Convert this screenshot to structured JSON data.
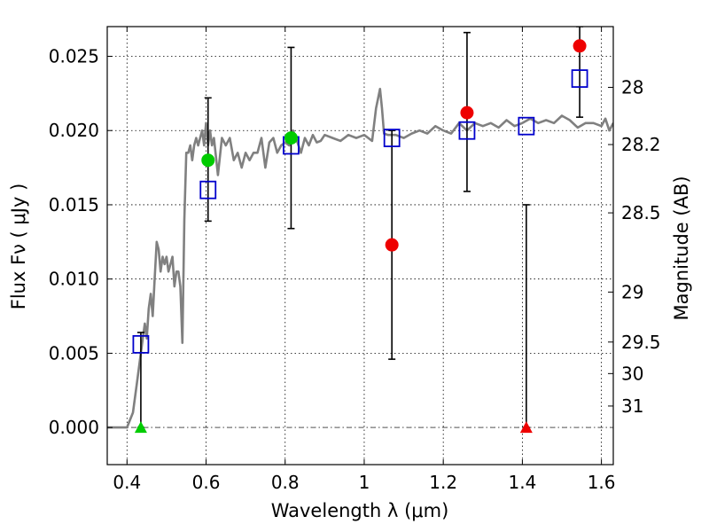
{
  "chart_data": {
    "type": "scatter",
    "xlabel": "Wavelength  λ (μm)",
    "ylabel": "Flux  Fν  ( μJy )",
    "y2label": "Magnitude (AB)",
    "xlim": [
      0.35,
      1.63
    ],
    "ylim": [
      -0.0025,
      0.027
    ],
    "grid": true,
    "x_ticks": [
      {
        "value": 0.4,
        "label": "0.4"
      },
      {
        "value": 0.6,
        "label": "0.6"
      },
      {
        "value": 0.8,
        "label": "0.8"
      },
      {
        "value": 1.0,
        "label": "1"
      },
      {
        "value": 1.2,
        "label": "1.2"
      },
      {
        "value": 1.4,
        "label": "1.4"
      },
      {
        "value": 1.6,
        "label": "1.6"
      }
    ],
    "y_ticks": [
      {
        "value": 0.0,
        "label": "0.000"
      },
      {
        "value": 0.005,
        "label": "0.005"
      },
      {
        "value": 0.01,
        "label": "0.010"
      },
      {
        "value": 0.015,
        "label": "0.015"
      },
      {
        "value": 0.02,
        "label": "0.020"
      },
      {
        "value": 0.025,
        "label": "0.025"
      }
    ],
    "y2_ticks": [
      {
        "value": 28,
        "label": "28"
      },
      {
        "value": 28.2,
        "label": "28.2"
      },
      {
        "value": 28.5,
        "label": "28.5"
      },
      {
        "value": 29,
        "label": "29"
      },
      {
        "value": 29.5,
        "label": "29.5"
      },
      {
        "value": 30,
        "label": "30"
      },
      {
        "value": 31,
        "label": "31"
      }
    ],
    "template_spectrum": {
      "color": "#808080",
      "x": [
        0.35,
        0.4,
        0.415,
        0.425,
        0.435,
        0.44,
        0.445,
        0.45,
        0.455,
        0.46,
        0.465,
        0.47,
        0.475,
        0.48,
        0.485,
        0.49,
        0.495,
        0.5,
        0.505,
        0.51,
        0.515,
        0.52,
        0.525,
        0.53,
        0.535,
        0.54,
        0.545,
        0.55,
        0.555,
        0.56,
        0.565,
        0.57,
        0.575,
        0.58,
        0.585,
        0.59,
        0.595,
        0.6,
        0.605,
        0.61,
        0.615,
        0.62,
        0.63,
        0.64,
        0.65,
        0.66,
        0.67,
        0.68,
        0.69,
        0.7,
        0.71,
        0.72,
        0.73,
        0.74,
        0.75,
        0.76,
        0.77,
        0.78,
        0.79,
        0.8,
        0.81,
        0.82,
        0.83,
        0.84,
        0.85,
        0.86,
        0.87,
        0.88,
        0.89,
        0.9,
        0.92,
        0.94,
        0.96,
        0.98,
        1.0,
        1.02,
        1.03,
        1.04,
        1.045,
        1.05,
        1.06,
        1.08,
        1.1,
        1.12,
        1.14,
        1.16,
        1.18,
        1.2,
        1.22,
        1.24,
        1.26,
        1.28,
        1.3,
        1.32,
        1.34,
        1.36,
        1.38,
        1.4,
        1.42,
        1.44,
        1.46,
        1.48,
        1.5,
        1.52,
        1.54,
        1.56,
        1.58,
        1.6,
        1.61,
        1.62,
        1.63
      ],
      "y": [
        0.0,
        0.0,
        0.001,
        0.003,
        0.005,
        0.006,
        0.007,
        0.006,
        0.008,
        0.009,
        0.0075,
        0.01,
        0.0125,
        0.012,
        0.0105,
        0.0115,
        0.011,
        0.0115,
        0.0105,
        0.011,
        0.0115,
        0.0095,
        0.0105,
        0.0105,
        0.0095,
        0.0057,
        0.014,
        0.0185,
        0.0185,
        0.019,
        0.018,
        0.019,
        0.0195,
        0.019,
        0.0195,
        0.02,
        0.019,
        0.0205,
        0.019,
        0.02,
        0.019,
        0.0195,
        0.017,
        0.0195,
        0.019,
        0.0195,
        0.018,
        0.0185,
        0.0175,
        0.0185,
        0.018,
        0.0185,
        0.0185,
        0.0195,
        0.0175,
        0.0192,
        0.0195,
        0.0185,
        0.019,
        0.0192,
        0.019,
        0.02,
        0.0193,
        0.0185,
        0.0195,
        0.019,
        0.0197,
        0.0192,
        0.0193,
        0.0197,
        0.0195,
        0.0193,
        0.0197,
        0.0195,
        0.0197,
        0.0193,
        0.0215,
        0.0228,
        0.0215,
        0.0198,
        0.0197,
        0.0197,
        0.0195,
        0.0198,
        0.02,
        0.0198,
        0.0203,
        0.02,
        0.0198,
        0.0205,
        0.02,
        0.0205,
        0.0203,
        0.0205,
        0.0202,
        0.0207,
        0.0203,
        0.0205,
        0.0208,
        0.0205,
        0.0207,
        0.0205,
        0.021,
        0.0207,
        0.0202,
        0.0205,
        0.0205,
        0.0203,
        0.0208,
        0.02,
        0.0205
      ]
    },
    "series": [
      {
        "marker": "square",
        "color": "#0000cc",
        "points": [
          {
            "x": 0.435,
            "y": 0.0056
          },
          {
            "x": 0.605,
            "y": 0.016
          },
          {
            "x": 0.815,
            "y": 0.019
          },
          {
            "x": 1.07,
            "y": 0.0195
          },
          {
            "x": 1.26,
            "y": 0.02
          },
          {
            "x": 1.41,
            "y": 0.0203
          },
          {
            "x": 1.545,
            "y": 0.0235
          }
        ]
      },
      {
        "marker": "circle",
        "color": "#00cc00",
        "points": [
          {
            "x": 0.605,
            "y": 0.018
          },
          {
            "x": 0.815,
            "y": 0.0195
          }
        ]
      },
      {
        "marker": "circle",
        "color": "#ee0000",
        "points": [
          {
            "x": 1.07,
            "y": 0.0123
          },
          {
            "x": 1.26,
            "y": 0.0212
          },
          {
            "x": 1.545,
            "y": 0.0257
          }
        ]
      },
      {
        "marker": "triangle",
        "color": "#00cc00",
        "points": [
          {
            "x": 0.435,
            "y": 0.0
          }
        ]
      },
      {
        "marker": "triangle",
        "color": "#ee0000",
        "points": [
          {
            "x": 1.41,
            "y": 0.0
          }
        ]
      }
    ],
    "error_bars": [
      {
        "x": 0.435,
        "low": 0.0,
        "high": 0.0064
      },
      {
        "x": 0.605,
        "low": 0.0139,
        "high": 0.0222
      },
      {
        "x": 0.815,
        "low": 0.0134,
        "high": 0.0256
      },
      {
        "x": 1.07,
        "low": 0.0046,
        "high": 0.02
      },
      {
        "x": 1.26,
        "low": 0.0159,
        "high": 0.0266
      },
      {
        "x": 1.41,
        "low": 0.0,
        "high": 0.015
      },
      {
        "x": 1.545,
        "low": 0.0209,
        "high": 0.027
      }
    ]
  }
}
